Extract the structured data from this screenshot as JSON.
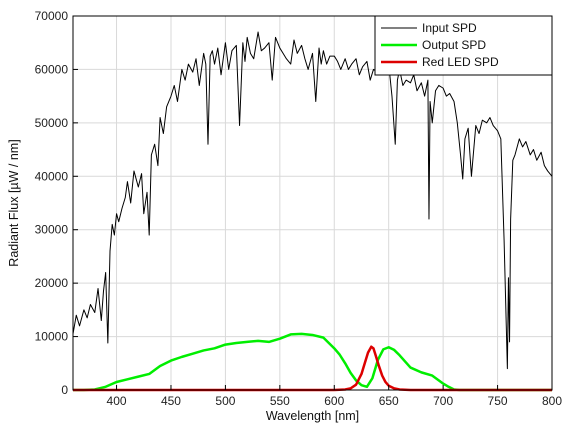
{
  "chart_data": {
    "type": "line",
    "title": "",
    "xlabel": "Wavelength [nm]",
    "ylabel": "Radiant Flux [µW / nm]",
    "xlim": [
      360,
      800
    ],
    "ylim": [
      0,
      70000
    ],
    "xticks": [
      400,
      450,
      500,
      550,
      600,
      650,
      700,
      750,
      800
    ],
    "yticks": [
      0,
      10000,
      20000,
      30000,
      40000,
      50000,
      60000,
      70000
    ],
    "grid": true,
    "legend_position": "top-right",
    "series": [
      {
        "name": "Input SPD",
        "color": "#000000",
        "x": [
          360,
          363,
          366,
          370,
          373,
          376,
          380,
          383,
          386,
          388,
          390,
          392,
          394,
          396,
          398,
          400,
          402,
          405,
          408,
          410,
          413,
          416,
          420,
          423,
          425,
          428,
          430,
          432,
          435,
          438,
          440,
          443,
          446,
          450,
          453,
          456,
          460,
          463,
          466,
          470,
          473,
          476,
          480,
          482,
          484,
          486,
          488,
          490,
          493,
          496,
          500,
          503,
          506,
          510,
          513,
          516,
          518,
          520,
          523,
          526,
          530,
          533,
          536,
          540,
          543,
          546,
          550,
          553,
          556,
          560,
          563,
          566,
          570,
          573,
          576,
          580,
          583,
          586,
          588,
          590,
          593,
          596,
          600,
          603,
          606,
          610,
          613,
          616,
          620,
          623,
          626,
          630,
          633,
          636,
          640,
          643,
          646,
          650,
          653,
          656,
          658,
          660,
          663,
          666,
          670,
          673,
          676,
          680,
          683,
          686,
          687,
          688,
          690,
          693,
          696,
          700,
          703,
          706,
          710,
          713,
          716,
          718,
          720,
          723,
          726,
          730,
          733,
          736,
          740,
          743,
          746,
          750,
          753,
          756,
          758,
          759,
          760,
          761,
          762,
          764,
          766,
          770,
          773,
          776,
          780,
          783,
          786,
          790,
          793,
          796,
          800
        ],
        "values": [
          10500,
          14000,
          12000,
          15000,
          13500,
          16000,
          14500,
          19000,
          13000,
          18500,
          22000,
          8800,
          26000,
          31000,
          29000,
          33000,
          31500,
          34000,
          36000,
          39000,
          35000,
          41000,
          38000,
          40500,
          33000,
          37000,
          29000,
          44000,
          46000,
          42000,
          51000,
          48000,
          53000,
          55000,
          57000,
          54000,
          60000,
          58000,
          61000,
          59500,
          62000,
          57000,
          63000,
          61000,
          46000,
          62500,
          63500,
          61000,
          64000,
          59000,
          65000,
          60000,
          63500,
          64500,
          49500,
          65000,
          61500,
          66000,
          63000,
          62000,
          67000,
          63500,
          64000,
          65000,
          58000,
          66000,
          64000,
          63000,
          62000,
          61000,
          65500,
          63000,
          64500,
          62000,
          60000,
          63000,
          54000,
          64000,
          61000,
          63500,
          61000,
          62500,
          62500,
          61500,
          60000,
          62000,
          60000,
          61000,
          62000,
          59000,
          60500,
          61500,
          58000,
          60000,
          59500,
          62000,
          60000,
          61000,
          55000,
          46000,
          58000,
          60000,
          57000,
          58000,
          57500,
          59000,
          56000,
          57500,
          55000,
          58000,
          32000,
          54000,
          50000,
          56000,
          57000,
          56500,
          55000,
          55500,
          54000,
          50000,
          44000,
          39500,
          47000,
          49000,
          40000,
          49500,
          48000,
          50500,
          50000,
          51000,
          49500,
          48500,
          47000,
          28000,
          12000,
          4000,
          21000,
          9000,
          32000,
          43000,
          44000,
          47000,
          45500,
          46500,
          44000,
          45000,
          43000,
          44500,
          42000,
          41000,
          40000
        ]
      },
      {
        "name": "Output SPD",
        "color": "#00ee00",
        "x": [
          360,
          370,
          380,
          390,
          400,
          410,
          420,
          430,
          440,
          450,
          460,
          470,
          480,
          490,
          500,
          510,
          520,
          530,
          540,
          550,
          560,
          570,
          580,
          590,
          600,
          605,
          610,
          615,
          620,
          625,
          630,
          635,
          640,
          645,
          650,
          655,
          660,
          670,
          680,
          690,
          700,
          705,
          710,
          715,
          720,
          800
        ],
        "values": [
          0,
          0,
          100,
          600,
          1500,
          2000,
          2500,
          3000,
          4500,
          5500,
          6200,
          6800,
          7400,
          7800,
          8500,
          8800,
          9000,
          9200,
          9000,
          9600,
          10400,
          10500,
          10300,
          9800,
          7800,
          6600,
          5000,
          3200,
          1800,
          900,
          600,
          2200,
          5600,
          7600,
          8000,
          7500,
          6500,
          4200,
          3300,
          2700,
          1200,
          600,
          100,
          0,
          0,
          0
        ]
      },
      {
        "name": "Red LED SPD",
        "color": "#dd0000",
        "x": [
          360,
          600,
          610,
          615,
          620,
          625,
          628,
          631,
          634,
          636,
          638,
          641,
          644,
          647,
          650,
          655,
          660,
          670,
          680,
          800
        ],
        "values": [
          0,
          0,
          100,
          300,
          1000,
          3000,
          5000,
          7000,
          8100,
          7800,
          6500,
          4500,
          2700,
          1500,
          800,
          300,
          100,
          0,
          0,
          0
        ]
      }
    ]
  }
}
